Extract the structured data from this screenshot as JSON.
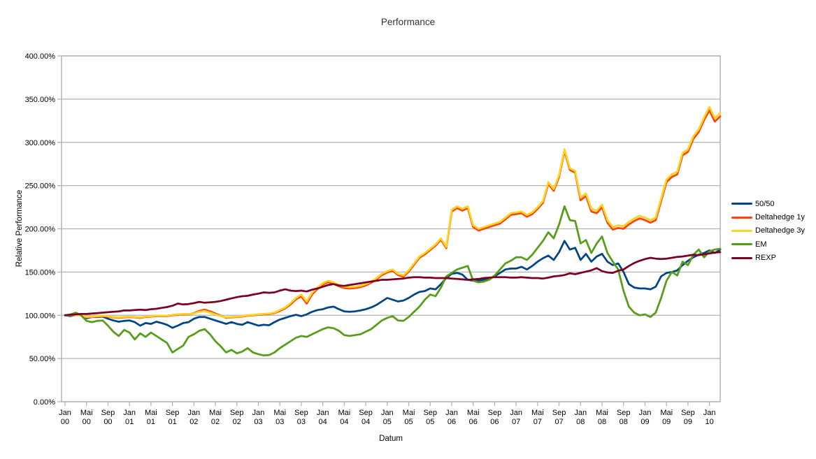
{
  "title": "Performance",
  "axes": {
    "x_title": "Datum",
    "y_title": "Relative Performance"
  },
  "colors": {
    "grid": "#b3b3b3",
    "axis_text": "#000000",
    "title_text": "#333333",
    "background": "#ffffff"
  },
  "chart_data": {
    "type": "line",
    "title": "Performance",
    "xlabel": "Datum",
    "ylabel": "Relative Performance",
    "frequency": "monthly",
    "x_start": "Jan 00",
    "x_end": "Mar 10",
    "ylim": [
      0,
      400
    ],
    "y_step": 50,
    "grid": true,
    "legend_position": "right",
    "y_tick_labels": [
      "0.00%",
      "50.00%",
      "100.00%",
      "150.00%",
      "200.00%",
      "250.00%",
      "300.00%",
      "350.00%",
      "400.00%"
    ],
    "x_tick_labels": [
      "Jan 00",
      "Mai 00",
      "Sep 00",
      "Jan 01",
      "Mai 01",
      "Sep 01",
      "Jan 02",
      "Mai 02",
      "Sep 02",
      "Jan 03",
      "Mai 03",
      "Sep 03",
      "Jan 04",
      "Mai 04",
      "Sep 04",
      "Jan 05",
      "Mai 05",
      "Sep 05",
      "Jan 06",
      "Mai 06",
      "Sep 06",
      "Jan 07",
      "Mai 07",
      "Sep 07",
      "Jan 08",
      "Mai 08",
      "Sep 08",
      "Jan 09",
      "Mai 09",
      "Sep 09",
      "Jan 10"
    ],
    "x_tick_every_nth_point": 4,
    "series": [
      {
        "name": "50/50",
        "color": "#004586",
        "values": [
          100,
          99,
          100.5,
          100,
          96.5,
          98,
          98,
          98.5,
          96,
          94,
          92.5,
          93.5,
          94,
          92,
          88,
          91,
          90,
          92.5,
          91,
          89,
          85.5,
          88,
          91,
          92,
          96,
          98,
          98,
          96,
          94,
          92,
          90,
          92,
          90,
          89,
          92,
          90,
          88,
          89,
          88.5,
          92,
          95,
          97,
          99,
          100.5,
          99,
          101,
          104,
          106,
          107,
          109,
          110,
          107,
          104.5,
          104,
          104.5,
          105.5,
          107,
          109,
          112,
          116,
          120,
          118,
          116,
          117,
          120,
          124,
          127,
          128,
          131,
          130,
          136,
          143,
          148,
          149,
          147,
          141,
          140,
          140,
          141,
          142,
          145,
          149,
          153,
          154,
          154,
          156,
          153,
          157,
          162,
          166,
          169,
          164,
          173,
          186,
          176,
          178,
          164,
          171,
          162,
          168,
          171,
          162,
          158,
          160,
          150,
          136,
          132,
          131,
          131,
          130,
          133,
          145,
          149,
          150,
          152,
          158,
          163,
          167,
          170,
          172,
          175,
          172,
          176
        ]
      },
      {
        "name": "Deltahedge 1y",
        "color": "#ff420e",
        "values": [
          100,
          100,
          100.5,
          100,
          97.5,
          98,
          98.5,
          99,
          98.5,
          97.5,
          97,
          97.5,
          98,
          97.5,
          97,
          98,
          98.5,
          99,
          99,
          99,
          100,
          100.5,
          101,
          101,
          102.5,
          105,
          106.5,
          104.5,
          102,
          99.5,
          97,
          97.5,
          98,
          98.5,
          99.5,
          100,
          100.5,
          101,
          101.5,
          102.5,
          105,
          108,
          112.5,
          118.5,
          122,
          113.5,
          124,
          130.5,
          135.5,
          138.5,
          136.5,
          133.5,
          131.5,
          131,
          131.5,
          132.5,
          134.5,
          137.5,
          141.5,
          146.5,
          149.5,
          151.5,
          146.5,
          144.5,
          150.5,
          158.5,
          166.5,
          170.5,
          175.5,
          180.5,
          187.5,
          177.5,
          220,
          224,
          221,
          224,
          202,
          198,
          200,
          202,
          204,
          206,
          211,
          216,
          217,
          218,
          214,
          217,
          223,
          230,
          252,
          244,
          260,
          290,
          268,
          265,
          233,
          238,
          220,
          218,
          225,
          207,
          199,
          201,
          200,
          205,
          209,
          212,
          210,
          207,
          210,
          232,
          254,
          260,
          263,
          285,
          289,
          304,
          312,
          326,
          337,
          324,
          330
        ]
      },
      {
        "name": "Deltahedge 3y",
        "color": "#ffd320",
        "values": [
          100,
          100,
          100.5,
          100,
          98,
          98.5,
          99,
          99.5,
          99,
          98,
          97.5,
          98,
          98.5,
          98,
          97.5,
          98.5,
          99,
          99.5,
          99.5,
          99.5,
          100.5,
          101,
          101.5,
          101.5,
          102,
          104,
          105,
          103,
          101,
          99,
          97.5,
          98,
          98.5,
          99,
          100,
          100.5,
          101,
          101.5,
          102,
          103,
          106,
          109,
          114,
          120,
          124,
          116,
          126,
          132,
          137,
          140,
          138,
          135,
          133,
          132.5,
          133,
          134,
          136,
          139,
          143,
          148,
          151,
          153,
          148,
          146,
          152,
          160,
          168,
          172,
          177,
          182,
          189,
          179,
          222,
          226,
          223,
          226,
          204,
          200,
          202,
          204,
          206,
          208,
          213,
          218,
          219,
          220,
          216,
          219,
          225,
          232,
          254,
          246,
          262,
          292,
          270,
          267,
          236,
          241,
          223,
          221,
          228,
          210,
          202,
          204,
          203,
          208,
          212,
          215,
          213,
          210,
          213,
          235,
          257,
          263,
          266,
          288,
          292,
          307,
          315,
          329,
          341,
          328,
          334
        ]
      },
      {
        "name": "EM",
        "color": "#579d1c",
        "values": [
          100,
          101,
          103,
          100,
          93.5,
          92,
          93.5,
          94,
          88,
          81,
          76,
          83,
          80,
          72,
          79,
          75,
          80,
          76,
          72,
          68,
          57,
          61,
          65,
          75,
          78,
          82,
          84,
          78,
          70,
          64,
          57,
          60,
          56,
          58,
          62,
          57,
          55,
          53.5,
          54,
          57,
          62,
          66,
          70,
          74,
          76,
          75,
          78,
          81,
          84,
          86,
          85,
          82,
          77,
          76,
          77,
          78,
          81,
          84,
          89,
          94,
          97,
          99,
          94,
          93.5,
          98,
          104,
          110,
          118,
          124,
          122,
          132,
          145,
          149,
          153,
          155,
          157,
          140,
          138,
          139,
          141,
          146,
          153,
          160,
          163,
          167,
          167,
          164,
          170,
          178,
          186,
          196,
          189,
          205,
          226,
          210,
          209,
          183,
          187,
          172,
          183,
          191,
          172,
          162,
          153,
          128,
          110,
          103,
          100,
          101,
          98,
          103,
          120,
          140,
          150,
          146,
          162,
          158,
          170,
          176,
          167,
          174,
          176,
          177
        ]
      },
      {
        "name": "REXP",
        "color": "#7e0021",
        "values": [
          100,
          100.5,
          101,
          101.5,
          101.5,
          102,
          102.5,
          103,
          103.5,
          104,
          104.5,
          105.5,
          105.5,
          106,
          106.5,
          106,
          107,
          107.5,
          108.5,
          109.5,
          111,
          113.5,
          112.5,
          113,
          114,
          115.5,
          114.5,
          115,
          115.5,
          116.5,
          118,
          119.5,
          121,
          122,
          122.5,
          124,
          125,
          126.5,
          126,
          126.5,
          128.5,
          130,
          128.5,
          128,
          128.5,
          127.5,
          129.5,
          131,
          133,
          135,
          136,
          134.5,
          134,
          135,
          136,
          137,
          138,
          139,
          140,
          141,
          141,
          141.5,
          142,
          142.5,
          143.5,
          144,
          144,
          143.5,
          143.5,
          143,
          143,
          143,
          142.5,
          142,
          141.5,
          141,
          141.5,
          142,
          143,
          143.5,
          144,
          144,
          144,
          143.5,
          143.5,
          144,
          143.5,
          143,
          143,
          142.5,
          143.5,
          145,
          145.5,
          146.5,
          148.5,
          147.5,
          149,
          150.5,
          152,
          154.5,
          151,
          149.5,
          149,
          151.5,
          153,
          157,
          160.5,
          163,
          165,
          166.5,
          165.5,
          165,
          165.5,
          166.5,
          167.5,
          168,
          169,
          170,
          169.5,
          170.5,
          171.5,
          172.5,
          173
        ]
      }
    ]
  }
}
